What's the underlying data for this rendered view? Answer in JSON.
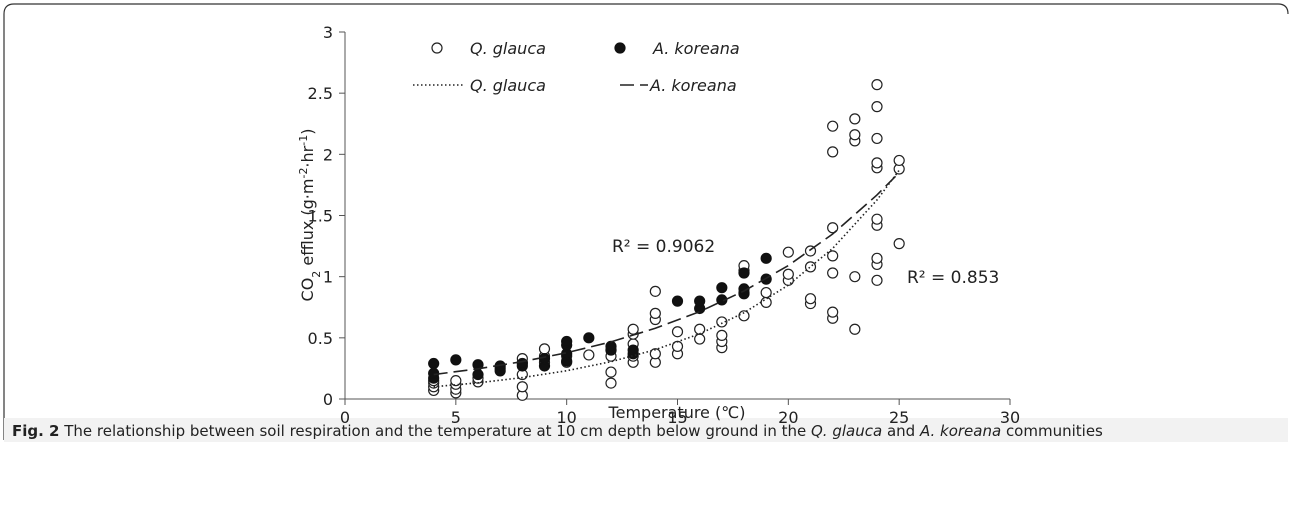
{
  "chart_data": {
    "type": "scatter",
    "ylabel": [
      "CO",
      "2",
      " efflux (g·m",
      "-2",
      "·hr",
      "-1",
      ")"
    ],
    "xlabel": "Temperature (℃)",
    "xlim": [
      0,
      30
    ],
    "xticks": [
      0,
      5,
      10,
      15,
      20,
      25,
      30
    ],
    "ylim": [
      0,
      3
    ],
    "yticks": [
      0,
      0.5,
      1,
      1.5,
      2,
      2.5,
      3
    ],
    "series": [
      {
        "name": "Q. glauca",
        "color": "#222222",
        "marker": "open",
        "x": [
          4,
          4,
          4,
          4,
          5,
          5,
          5,
          5,
          6,
          6,
          7,
          8,
          8,
          8,
          8,
          8,
          9,
          9,
          9,
          10,
          10,
          11,
          12,
          12,
          12,
          12,
          13,
          13,
          13,
          13,
          13,
          14,
          14,
          14,
          14,
          14,
          15,
          15,
          15,
          16,
          16,
          17,
          17,
          17,
          17,
          18,
          18,
          18,
          18,
          19,
          19,
          20,
          20,
          20,
          21,
          21,
          21,
          21,
          22,
          22,
          22,
          22,
          22,
          22,
          22,
          23,
          23,
          23,
          23,
          23,
          24,
          24,
          24,
          24,
          24,
          24,
          24,
          24,
          24,
          24,
          25,
          25,
          25
        ],
        "values": [
          0.07,
          0.1,
          0.13,
          0.15,
          0.05,
          0.08,
          0.12,
          0.15,
          0.14,
          0.17,
          0.25,
          0.03,
          0.1,
          0.2,
          0.3,
          0.33,
          0.3,
          0.35,
          0.41,
          0.3,
          0.35,
          0.36,
          0.13,
          0.22,
          0.35,
          0.4,
          0.3,
          0.35,
          0.45,
          0.53,
          0.57,
          0.3,
          0.37,
          0.65,
          0.7,
          0.88,
          0.37,
          0.43,
          0.55,
          0.49,
          0.57,
          0.42,
          0.47,
          0.52,
          0.63,
          0.68,
          0.87,
          1.05,
          1.09,
          0.79,
          0.87,
          0.97,
          1.02,
          1.2,
          0.78,
          0.82,
          1.08,
          1.21,
          0.66,
          0.71,
          1.03,
          1.17,
          1.4,
          2.02,
          2.23,
          0.57,
          1.0,
          2.11,
          2.16,
          2.29,
          0.97,
          1.1,
          1.15,
          1.42,
          1.47,
          1.89,
          1.93,
          2.13,
          2.39,
          2.57,
          1.27,
          1.88,
          1.95
        ]
      },
      {
        "name": "A. koreana",
        "color": "#111111",
        "marker": "filled",
        "x": [
          4,
          4,
          4,
          5,
          6,
          6,
          7,
          7,
          8,
          8,
          9,
          9,
          10,
          10,
          10,
          10,
          11,
          12,
          12,
          13,
          13,
          15,
          16,
          16,
          17,
          17,
          18,
          18,
          18,
          19,
          19
        ],
        "values": [
          0.17,
          0.21,
          0.29,
          0.32,
          0.2,
          0.28,
          0.23,
          0.27,
          0.27,
          0.29,
          0.27,
          0.33,
          0.31,
          0.37,
          0.44,
          0.47,
          0.5,
          0.4,
          0.43,
          0.37,
          0.4,
          0.8,
          0.74,
          0.8,
          0.81,
          0.91,
          0.86,
          0.9,
          1.03,
          0.98,
          1.15
        ]
      },
      {
        "name": "Q. glauca",
        "color": "#222222",
        "marker": "dotted",
        "x": [
          4,
          6,
          8,
          10,
          12,
          14,
          16,
          18,
          20,
          22,
          24,
          25
        ],
        "values": [
          0.1,
          0.132,
          0.175,
          0.231,
          0.305,
          0.403,
          0.533,
          0.705,
          0.931,
          1.231,
          1.627,
          1.87
        ]
      },
      {
        "name": "A. koreana",
        "color": "#222222",
        "marker": "dashed",
        "x": [
          4,
          6,
          8,
          10,
          12,
          14,
          16,
          18,
          20,
          22,
          24,
          25
        ],
        "values": [
          0.2,
          0.247,
          0.306,
          0.378,
          0.467,
          0.578,
          0.714,
          0.883,
          1.091,
          1.349,
          1.668,
          1.85
        ]
      }
    ],
    "annotations": [
      "R² = 0.9062",
      "R² = 0.853"
    ]
  },
  "caption": {
    "label": "Fig. 2",
    "parts": [
      " The relationship between soil respiration and the temperature at 10 cm depth below ground in the ",
      "Q. glauca",
      " and ",
      "A. koreana",
      " communities"
    ]
  }
}
